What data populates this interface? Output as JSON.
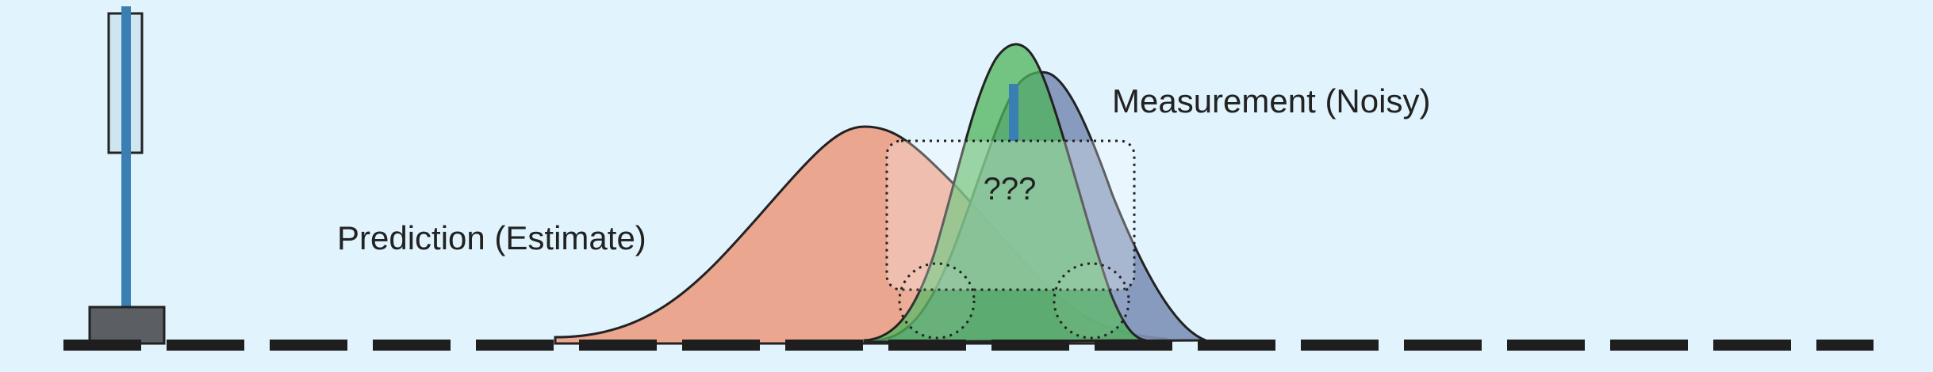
{
  "labels": {
    "prediction": "Prediction (Estimate)",
    "measurement": "Measurement (Noisy)",
    "unknown": "???"
  },
  "colors": {
    "background": "#e1f3fc",
    "prediction": "#eb9b80",
    "measurement": "#7f94b8",
    "fused": "#4db35a",
    "robot_mast": "#3a7fb4",
    "robot_body": "#5b5f63",
    "track": "#1e1e1e",
    "measurement_marker": "#3a7fb4"
  },
  "icons": {
    "robot": "robot-vehicle-icon",
    "uncertainty_region": "dotted-rounded-box",
    "wheels": "dotted-circle"
  }
}
